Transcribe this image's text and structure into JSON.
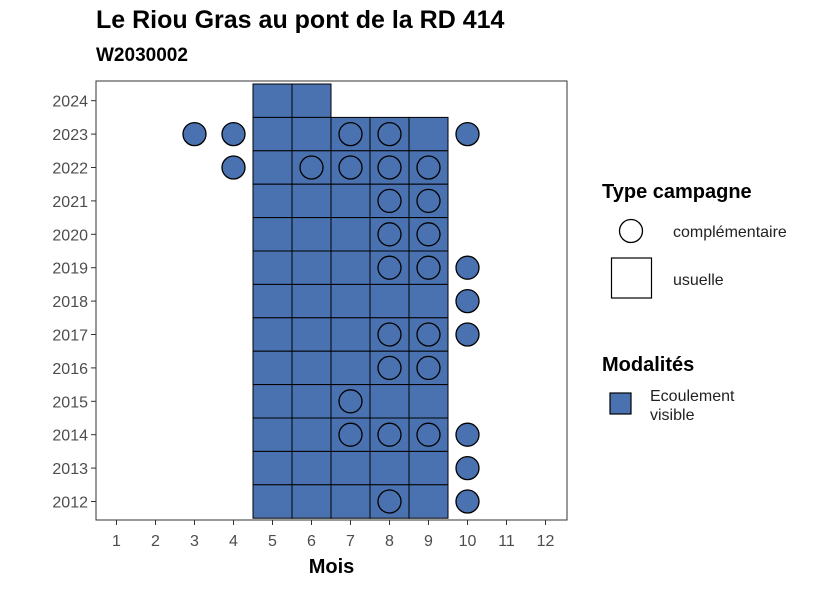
{
  "chart_data": {
    "type": "heatmap",
    "title": "Le Riou Gras au pont de la RD 414",
    "subtitle": "W2030002",
    "xlabel": "Mois",
    "ylabel": "",
    "x_ticks": [
      1,
      2,
      3,
      4,
      5,
      6,
      7,
      8,
      9,
      10,
      11,
      12
    ],
    "y_ticks": [
      2012,
      2013,
      2014,
      2015,
      2016,
      2017,
      2018,
      2019,
      2020,
      2021,
      2022,
      2023,
      2024
    ],
    "colors": {
      "ecoulement_visible": "#4a72b0",
      "outline": "#000000"
    },
    "legend": {
      "type_title": "Type campagne",
      "type_items": [
        {
          "shape": "circle",
          "label": "complémentaire"
        },
        {
          "shape": "square",
          "label": "usuelle"
        }
      ],
      "mod_title": "Modalités",
      "mod_items": [
        {
          "label_lines": [
            "Ecoulement",
            "visible"
          ],
          "color": "#4a72b0"
        }
      ]
    },
    "usuelle": [
      {
        "year": 2024,
        "months": [
          5,
          6
        ]
      },
      {
        "year": 2023,
        "months": [
          5,
          6,
          7,
          8,
          9
        ]
      },
      {
        "year": 2022,
        "months": [
          5,
          6,
          7,
          8,
          9
        ]
      },
      {
        "year": 2021,
        "months": [
          5,
          6,
          7,
          8,
          9
        ]
      },
      {
        "year": 2020,
        "months": [
          5,
          6,
          7,
          8,
          9
        ]
      },
      {
        "year": 2019,
        "months": [
          5,
          6,
          7,
          8,
          9
        ]
      },
      {
        "year": 2018,
        "months": [
          5,
          6,
          7,
          8,
          9
        ]
      },
      {
        "year": 2017,
        "months": [
          5,
          6,
          7,
          8,
          9
        ]
      },
      {
        "year": 2016,
        "months": [
          5,
          6,
          7,
          8,
          9
        ]
      },
      {
        "year": 2015,
        "months": [
          5,
          6,
          7,
          8,
          9
        ]
      },
      {
        "year": 2014,
        "months": [
          5,
          6,
          7,
          8,
          9
        ]
      },
      {
        "year": 2013,
        "months": [
          5,
          6,
          7,
          8,
          9
        ]
      },
      {
        "year": 2012,
        "months": [
          5,
          6,
          7,
          8,
          9
        ]
      }
    ],
    "complementaire": [
      {
        "year": 2023,
        "months": [
          3,
          4,
          7,
          8,
          10
        ]
      },
      {
        "year": 2022,
        "months": [
          4,
          6,
          7,
          8,
          9
        ]
      },
      {
        "year": 2021,
        "months": [
          8,
          9
        ]
      },
      {
        "year": 2020,
        "months": [
          8,
          9
        ]
      },
      {
        "year": 2019,
        "months": [
          8,
          9,
          10
        ]
      },
      {
        "year": 2018,
        "months": [
          10
        ]
      },
      {
        "year": 2017,
        "months": [
          8,
          9,
          10
        ]
      },
      {
        "year": 2016,
        "months": [
          8,
          9
        ]
      },
      {
        "year": 2015,
        "months": [
          7
        ]
      },
      {
        "year": 2014,
        "months": [
          7,
          8,
          9,
          10
        ]
      },
      {
        "year": 2013,
        "months": [
          10
        ]
      },
      {
        "year": 2012,
        "months": [
          8,
          10
        ]
      }
    ]
  }
}
